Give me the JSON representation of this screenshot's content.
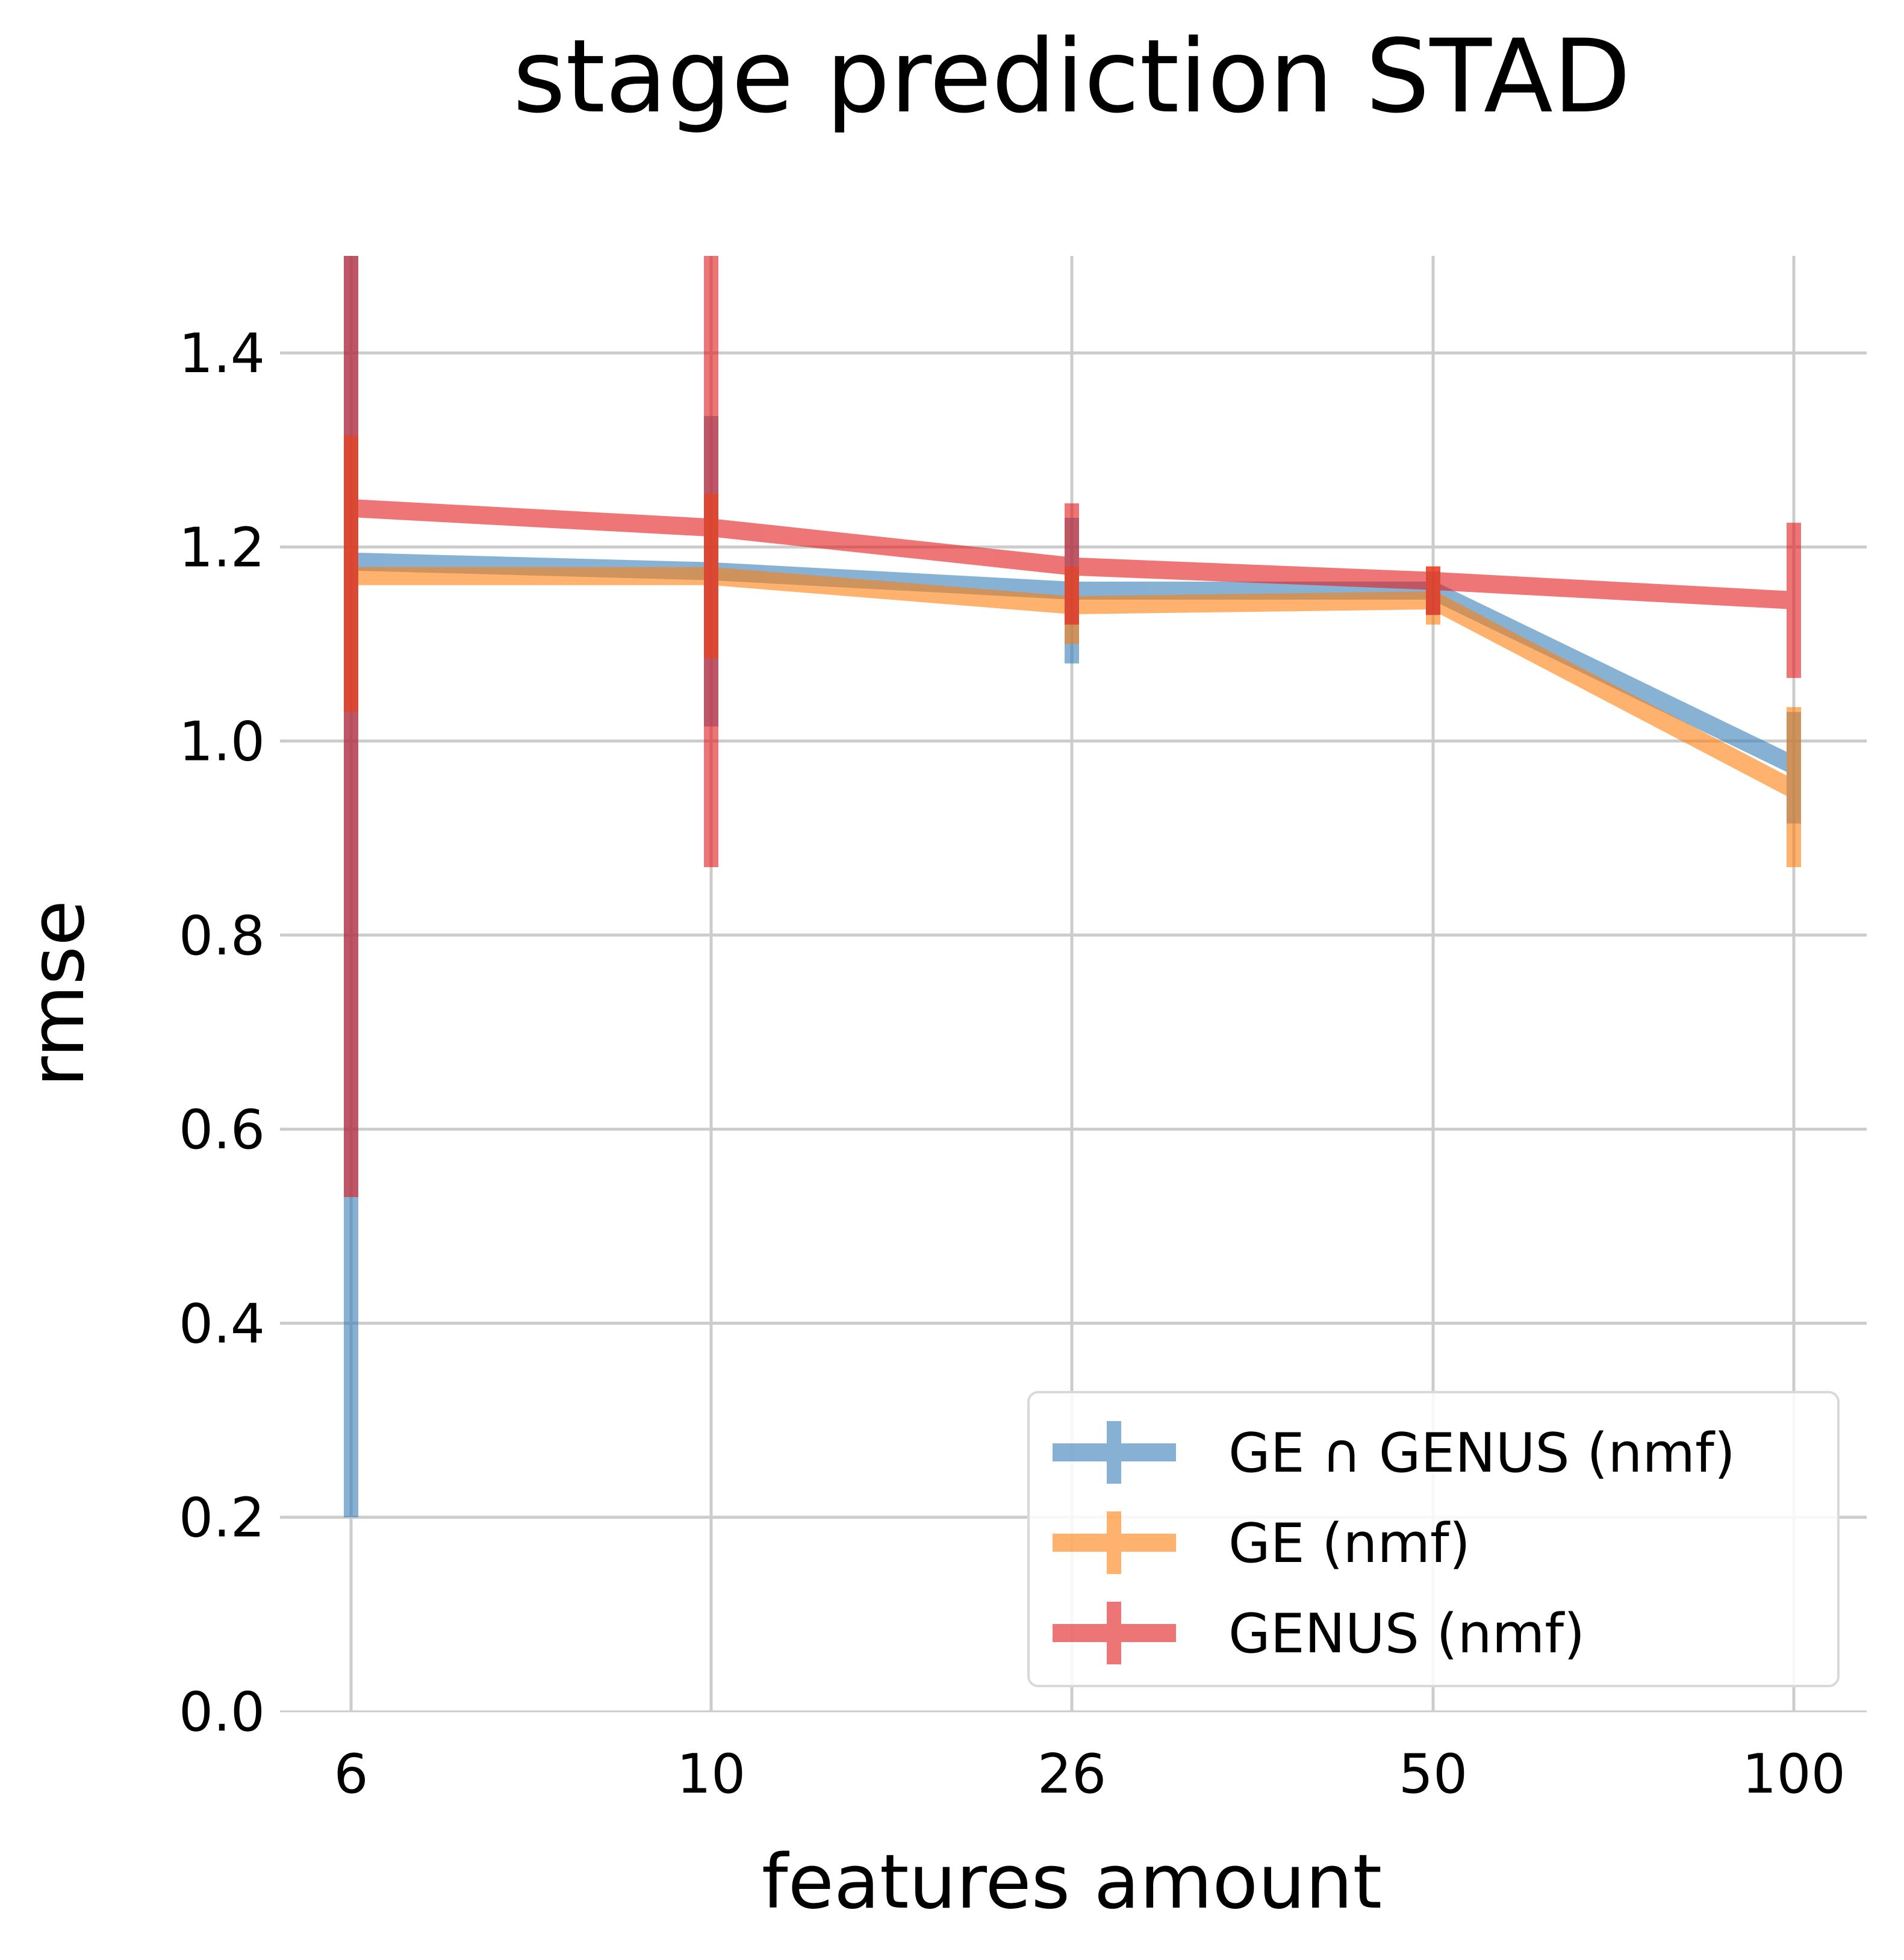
{
  "chart_data": {
    "type": "line",
    "title": "stage prediction STAD",
    "xlabel": "features amount",
    "ylabel": "rmse",
    "x": [
      "6",
      "10",
      "26",
      "50",
      "100"
    ],
    "ylim": [
      0,
      1.5
    ],
    "yticks": [
      "0.0",
      "0.2",
      "0.4",
      "0.6",
      "0.8",
      "1.0",
      "1.2",
      "1.4"
    ],
    "grid": true,
    "legend_position": "lower-right",
    "error_bars": true,
    "series": [
      {
        "name": "GE ∩ GENUS (nmf)",
        "color": "#377eb8",
        "values": [
          1.185,
          1.175,
          1.155,
          1.155,
          0.975
        ],
        "err_low": [
          0.2,
          1.015,
          1.08,
          1.13,
          0.915
        ],
        "err_high": [
          1.5,
          1.335,
          1.23,
          1.175,
          1.03
        ]
      },
      {
        "name": "GE (nmf)",
        "color": "#ff7f0e",
        "values": [
          1.17,
          1.17,
          1.14,
          1.145,
          0.95
        ],
        "err_low": [
          1.03,
          1.085,
          1.1,
          1.12,
          0.87
        ],
        "err_high": [
          1.315,
          1.255,
          1.18,
          1.18,
          1.035
        ]
      },
      {
        "name": "GENUS (nmf)",
        "color": "#e41a1c",
        "values": [
          1.24,
          1.22,
          1.18,
          1.165,
          1.145
        ],
        "err_low": [
          0.53,
          0.87,
          1.12,
          1.13,
          1.065
        ],
        "err_high": [
          1.5,
          1.5,
          1.245,
          1.18,
          1.225
        ]
      }
    ]
  }
}
